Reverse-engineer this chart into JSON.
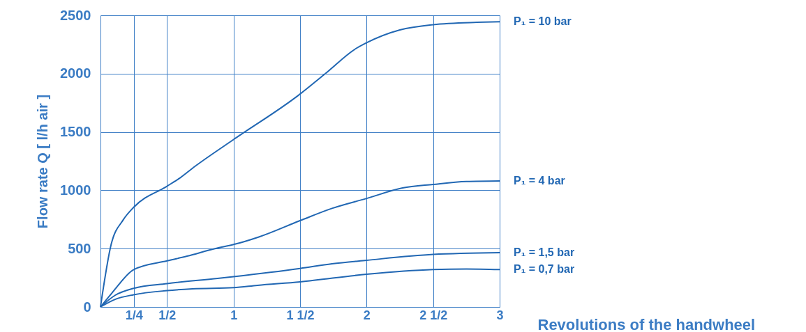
{
  "chart_data": {
    "type": "line",
    "xlabel": "Revolutions of the handwheel",
    "ylabel": "Flow rate Q [ l/h air ]",
    "series": [
      {
        "name": "P₁ = 10 bar",
        "color": "#2167b3",
        "x": [
          0,
          0.08,
          0.17,
          0.25,
          0.5,
          0.59,
          0.71,
          1.0,
          1.5,
          1.69,
          1.92,
          2.0,
          2.25,
          2.5,
          2.83,
          3.0
        ],
        "values": [
          0,
          535,
          745,
          855,
          1035,
          1100,
          1205,
          1435,
          1825,
          2000,
          2215,
          2265,
          2375,
          2420,
          2440,
          2445
        ]
      },
      {
        "name": "P₁ = 4 bar",
        "color": "#2167b3",
        "x": [
          0,
          0.09,
          0.25,
          0.5,
          0.65,
          0.86,
          1.0,
          1.19,
          1.5,
          1.74,
          2.0,
          2.27,
          2.5,
          2.75,
          3.0
        ],
        "values": [
          0,
          125,
          320,
          395,
          435,
          500,
          535,
          600,
          740,
          845,
          930,
          1020,
          1050,
          1075,
          1080
        ]
      },
      {
        "name": "P₁ = 1,5 bar",
        "color": "#2167b3",
        "x": [
          0,
          0.11,
          0.25,
          0.5,
          0.88,
          1.0,
          1.5,
          1.74,
          2.0,
          2.5,
          3.0
        ],
        "values": [
          0,
          100,
          160,
          200,
          245,
          260,
          330,
          370,
          400,
          450,
          465
        ]
      },
      {
        "name": "P₁ = 0,7 bar",
        "color": "#2167b3",
        "x": [
          0,
          0.11,
          0.25,
          0.5,
          0.69,
          1.0,
          1.18,
          1.5,
          2.0,
          2.5,
          2.75,
          3.0
        ],
        "values": [
          0,
          65,
          105,
          140,
          155,
          165,
          185,
          215,
          280,
          320,
          325,
          320
        ]
      }
    ],
    "xlim": [
      0,
      3
    ],
    "ylim": [
      0,
      2500
    ],
    "xticks": [
      {
        "value": 0.25,
        "label": "1/4"
      },
      {
        "value": 0.5,
        "label": "1/2"
      },
      1,
      {
        "value": 1.5,
        "label": "1 1/2"
      },
      2,
      {
        "value": 2.5,
        "label": "2 1/2"
      },
      3
    ],
    "yticks": [
      0,
      500,
      1000,
      1500,
      2000,
      2500
    ],
    "grid": true
  }
}
